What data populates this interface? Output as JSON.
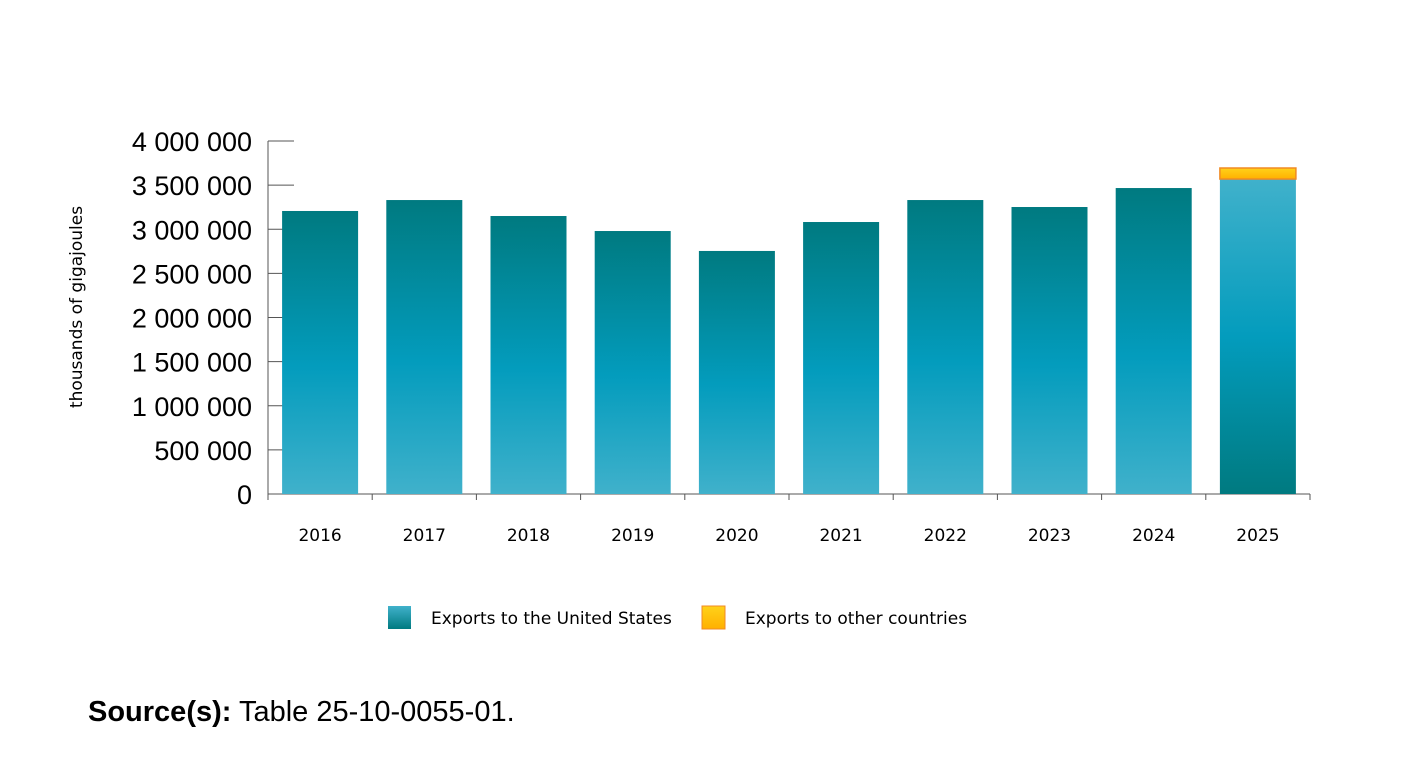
{
  "chart_data": {
    "type": "bar",
    "stacked": true,
    "title": "",
    "xlabel": "",
    "ylabel": "thousands of gigajoules",
    "ylim": [
      0,
      4000000
    ],
    "yticks": [
      0,
      500000,
      1000000,
      1500000,
      2000000,
      2500000,
      3000000,
      3500000,
      4000000
    ],
    "ytick_labels": [
      "0",
      "500 000",
      "1 000 000",
      "1 500 000",
      "2 000 000",
      "2 500 000",
      "3 000 000",
      "3 500 000",
      "4 000 000"
    ],
    "categories": [
      "2016",
      "2017",
      "2018",
      "2019",
      "2020",
      "2021",
      "2022",
      "2023",
      "2024",
      "2025"
    ],
    "series": [
      {
        "name": "Exports to the United States",
        "color": "#0399bb",
        "values": [
          3207000,
          3331000,
          3150000,
          2980000,
          2754000,
          3082000,
          3331000,
          3252000,
          3467000,
          3569000
        ]
      },
      {
        "name": "Exports to other countries",
        "color": "#ffc20e",
        "values": [
          0,
          0,
          0,
          0,
          0,
          0,
          0,
          0,
          0,
          125000
        ]
      }
    ],
    "grid": false,
    "legend_position": "bottom"
  },
  "source": {
    "label": "Source(s):",
    "text": " Table 25-10-0055-01."
  }
}
